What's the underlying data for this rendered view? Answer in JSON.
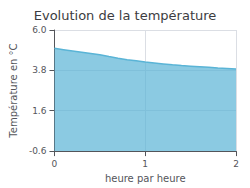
{
  "chart_data": {
    "type": "area",
    "title": "Evolution de la température",
    "xlabel": "heure par heure",
    "ylabel": "Température en °C",
    "x": [
      0.0,
      0.1,
      0.2,
      0.3,
      0.4,
      0.5,
      0.6,
      0.7,
      0.8,
      0.9,
      1.0,
      1.1,
      1.2,
      1.3,
      1.4,
      1.5,
      1.6,
      1.7,
      1.8,
      1.9,
      2.0
    ],
    "values": [
      5.0,
      4.93,
      4.86,
      4.79,
      4.72,
      4.65,
      4.55,
      4.46,
      4.38,
      4.32,
      4.25,
      4.2,
      4.15,
      4.1,
      4.06,
      4.03,
      4.0,
      3.97,
      3.93,
      3.9,
      3.87
    ],
    "color": "#5ab4d6",
    "xlim": [
      0,
      2
    ],
    "xticks": [
      0,
      1,
      2
    ],
    "ylim": [
      -0.6,
      6.0
    ],
    "yticks": [
      -0.6,
      1.6,
      3.8,
      {
        "value": 6.0,
        "label": "6.0"
      }
    ],
    "grid": true
  }
}
